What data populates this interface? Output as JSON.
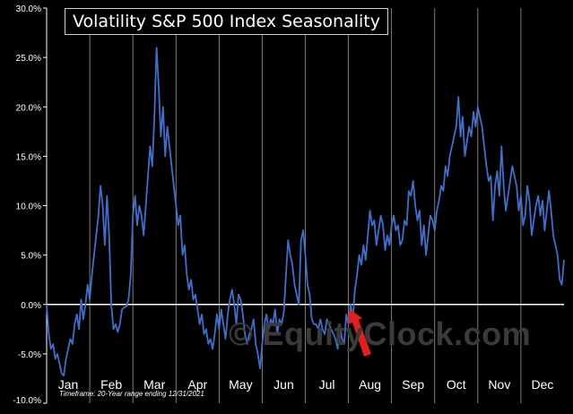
{
  "chart_data": {
    "type": "line",
    "title": "Volatility S&P 500 Index Seasonality",
    "timeframe_note": "Timeframe: 20-Year range ending 12/31/2021",
    "watermark": "© EquityClock.com",
    "xlabel": "",
    "ylabel": "",
    "ylim": [
      -10,
      30
    ],
    "y_ticks": [
      "-10.0%",
      "-5.0%",
      "0.0%",
      "5.0%",
      "10.0%",
      "15.0%",
      "20.0%",
      "25.0%",
      "30.0%"
    ],
    "y_tick_values": [
      -10,
      -5,
      0,
      5,
      10,
      15,
      20,
      25,
      30
    ],
    "months": [
      "Jan",
      "Feb",
      "Mar",
      "Apr",
      "May",
      "Jun",
      "Jul",
      "Aug",
      "Sep",
      "Oct",
      "Nov",
      "Dec"
    ],
    "grid": "vertical month lines",
    "line_color": "#3f6fc9",
    "axis_color": "#ffffff",
    "annotation": "red arrow pointing to mid-July low",
    "series": [
      {
        "x": [
          0.0,
          0.05,
          0.1,
          0.15,
          0.2,
          0.25,
          0.3,
          0.35,
          0.4,
          0.45,
          0.5,
          0.55,
          0.6,
          0.65,
          0.7,
          0.75,
          0.8,
          0.85,
          0.9,
          0.95,
          1.0,
          1.05,
          1.1,
          1.15,
          1.2,
          1.25,
          1.3,
          1.35,
          1.4,
          1.45,
          1.5,
          1.55,
          1.6,
          1.65,
          1.7,
          1.75,
          1.8,
          1.85,
          1.9,
          1.95,
          2.0,
          2.05,
          2.1,
          2.15,
          2.2,
          2.25,
          2.3,
          2.35,
          2.4,
          2.45,
          2.5,
          2.55,
          2.6,
          2.65,
          2.7,
          2.75,
          2.8,
          2.85,
          2.9,
          2.95,
          3.0,
          3.05,
          3.1,
          3.15,
          3.2,
          3.25,
          3.3,
          3.35,
          3.4,
          3.45,
          3.5,
          3.55,
          3.6,
          3.65,
          3.7,
          3.75,
          3.8,
          3.85,
          3.9,
          3.95,
          4.0,
          4.05,
          4.1,
          4.15,
          4.2,
          4.25,
          4.3,
          4.35,
          4.4,
          4.45,
          4.5,
          4.55,
          4.6,
          4.65,
          4.7,
          4.75,
          4.8,
          4.85,
          4.9,
          4.95,
          5.0,
          5.05,
          5.1,
          5.15,
          5.2,
          5.25,
          5.3,
          5.35,
          5.4,
          5.45,
          5.5,
          5.55,
          5.6,
          5.65,
          5.7,
          5.75,
          5.8,
          5.85,
          5.9,
          5.95,
          6.0,
          6.05,
          6.1,
          6.15,
          6.2,
          6.25,
          6.3,
          6.35,
          6.4,
          6.45,
          6.5,
          6.55,
          6.6,
          6.65,
          6.7,
          6.75,
          6.8,
          6.85,
          6.9,
          6.95,
          7.0,
          7.05,
          7.1,
          7.15,
          7.2,
          7.25,
          7.3,
          7.35,
          7.4,
          7.45,
          7.5,
          7.55,
          7.6,
          7.65,
          7.7,
          7.75,
          7.8,
          7.85,
          7.9,
          7.95,
          8.0,
          8.05,
          8.1,
          8.15,
          8.2,
          8.25,
          8.3,
          8.35,
          8.4,
          8.45,
          8.5,
          8.55,
          8.6,
          8.65,
          8.7,
          8.75,
          8.8,
          8.85,
          8.9,
          8.95,
          9.0,
          9.05,
          9.1,
          9.15,
          9.2,
          9.25,
          9.3,
          9.35,
          9.4,
          9.45,
          9.5,
          9.55,
          9.6,
          9.65,
          9.7,
          9.75,
          9.8,
          9.85,
          9.9,
          9.95,
          10.0,
          10.05,
          10.1,
          10.15,
          10.2,
          10.25,
          10.3,
          10.35,
          10.4,
          10.45,
          10.5,
          10.55,
          10.6,
          10.65,
          10.7,
          10.75,
          10.8,
          10.85,
          10.9,
          10.95,
          11.0,
          11.05,
          11.1,
          11.15,
          11.2,
          11.25,
          11.3,
          11.35,
          11.4,
          11.45,
          11.5,
          11.55,
          11.6,
          11.65,
          11.7,
          11.75,
          11.8,
          11.85,
          11.9,
          11.95,
          12.0
        ],
        "y": [
          0.0,
          -3.0,
          -4.5,
          -4.0,
          -5.5,
          -5.0,
          -6.0,
          -7.0,
          -7.2,
          -5.5,
          -4.5,
          -3.5,
          -4.0,
          -2.0,
          -1.0,
          -2.5,
          0.5,
          -1.5,
          0.0,
          2.0,
          0.5,
          3.0,
          5.0,
          7.0,
          9.0,
          12.0,
          10.0,
          6.0,
          11.0,
          7.0,
          0.0,
          -2.5,
          -2.0,
          -2.8,
          -2.0,
          -0.5,
          -0.3,
          -0.2,
          0.5,
          3.0,
          9.0,
          11.0,
          8.0,
          10.0,
          9.0,
          7.0,
          10.0,
          13.0,
          16.0,
          14.0,
          19.0,
          26.0,
          22.0,
          17.0,
          20.0,
          15.0,
          18.0,
          16.0,
          14.0,
          12.0,
          10.0,
          8.0,
          9.0,
          5.0,
          6.0,
          3.0,
          1.5,
          2.5,
          0.5,
          1.0,
          -0.5,
          -2.0,
          -1.0,
          -3.0,
          -2.5,
          -4.0,
          -3.5,
          -4.5,
          -3.0,
          -1.0,
          -2.5,
          -0.5,
          -2.0,
          -3.5,
          -1.0,
          0.5,
          1.5,
          0.0,
          -2.0,
          1.0,
          0.5,
          -1.0,
          -3.0,
          -4.0,
          -3.0,
          -2.5,
          -1.5,
          -4.0,
          -5.0,
          -6.5,
          -4.0,
          -2.0,
          -1.0,
          -2.5,
          -1.5,
          -2.0,
          -0.5,
          -3.0,
          -1.5,
          -2.0,
          -0.8,
          3.0,
          6.5,
          5.0,
          4.0,
          2.0,
          1.0,
          0.0,
          6.5,
          7.5,
          5.0,
          2.0,
          1.0,
          -1.5,
          -2.0,
          -2.0,
          -2.5,
          -1.5,
          -2.5,
          -3.0,
          -1.5,
          -2.0,
          -2.5,
          -3.0,
          -3.5,
          -4.5,
          -2.0,
          -3.5,
          -4.0,
          -1.0,
          -2.0,
          0.0,
          -1.5,
          1.5,
          3.0,
          5.0,
          4.0,
          6.0,
          4.5,
          7.0,
          9.5,
          8.0,
          8.5,
          6.0,
          7.5,
          9.0,
          8.0,
          5.5,
          7.0,
          6.0,
          8.0,
          9.0,
          7.5,
          8.0,
          6.0,
          6.5,
          8.5,
          8.0,
          11.5,
          11.0,
          12.5,
          10.0,
          8.5,
          9.5,
          6.0,
          8.0,
          5.0,
          7.0,
          9.0,
          8.5,
          7.5,
          9.5,
          10.5,
          12.0,
          11.5,
          14.0,
          13.0,
          15.0,
          16.0,
          17.0,
          18.0,
          21.0,
          17.0,
          19.0,
          15.0,
          16.5,
          18.0,
          17.0,
          19.5,
          18.0,
          20.0,
          19.0,
          18.0,
          16.0,
          14.0,
          12.5,
          13.0,
          8.5,
          12.0,
          13.5,
          11.0,
          16.0,
          12.0,
          9.5,
          11.0,
          12.5,
          14.0,
          13.0,
          12.0,
          9.5,
          11.0,
          8.0,
          9.0,
          12.0,
          10.5,
          7.0,
          8.5,
          10.0,
          11.0,
          9.0,
          10.5,
          7.5,
          9.5,
          11.5,
          9.5,
          7.0,
          6.0,
          5.0,
          2.5,
          2.0,
          4.5
        ]
      }
    ]
  }
}
